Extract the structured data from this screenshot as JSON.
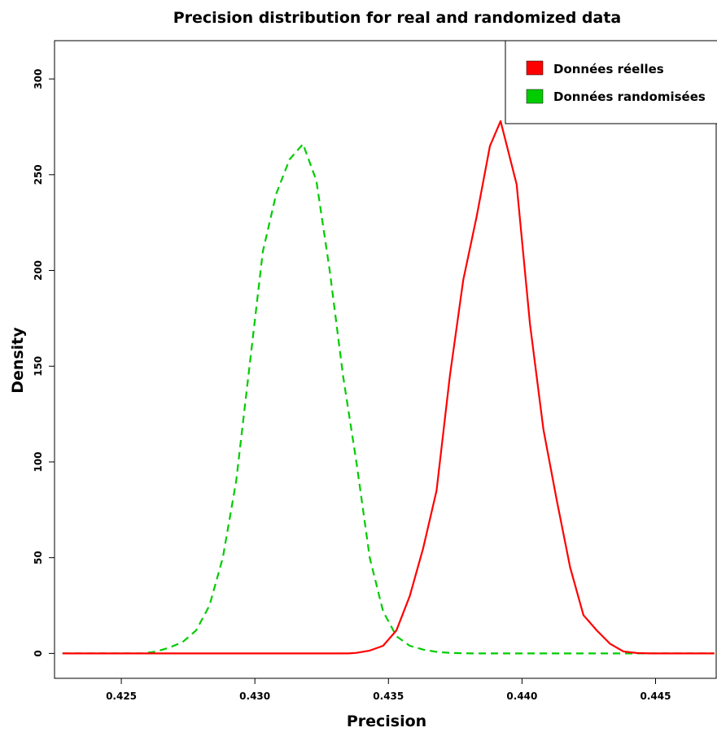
{
  "chart_data": {
    "type": "line",
    "title": "Precision distribution for real and randomized data",
    "xlabel": "Precision",
    "ylabel": "Density",
    "xlim": [
      0.4225,
      0.4473
    ],
    "ylim": [
      -13,
      320
    ],
    "xticks": [
      0.425,
      0.43,
      0.435,
      0.44,
      0.445
    ],
    "xtick_labels": [
      "0.425",
      "0.430",
      "0.435",
      "0.440",
      "0.445"
    ],
    "yticks": [
      0,
      50,
      100,
      150,
      200,
      250,
      300
    ],
    "ytick_labels": [
      "0",
      "50",
      "100",
      "150",
      "200",
      "250",
      "300"
    ],
    "grid": false,
    "legend_position": "top-right",
    "series": [
      {
        "name": "Données réelles",
        "color": "#ff0000",
        "style": "solid",
        "x": [
          0.4228,
          0.4335,
          0.4338,
          0.4343,
          0.4348,
          0.4353,
          0.4358,
          0.4363,
          0.4368,
          0.4373,
          0.4378,
          0.4383,
          0.4388,
          0.4392,
          0.4398,
          0.4403,
          0.4408,
          0.4413,
          0.4418,
          0.4423,
          0.4428,
          0.4433,
          0.4438,
          0.4443,
          0.4448,
          0.4472
        ],
        "y": [
          0,
          0,
          0.3,
          1.5,
          4,
          12,
          30,
          55,
          85,
          145,
          195,
          228,
          265,
          278,
          245,
          172,
          117,
          80,
          45,
          20,
          12,
          5,
          1,
          0.2,
          0,
          0
        ]
      },
      {
        "name": "Données randomisées",
        "color": "#00cc00",
        "style": "dashed",
        "x": [
          0.4228,
          0.4258,
          0.4263,
          0.4268,
          0.4273,
          0.4278,
          0.4283,
          0.4288,
          0.4293,
          0.4298,
          0.4303,
          0.4308,
          0.4313,
          0.4318,
          0.4323,
          0.4328,
          0.4333,
          0.4338,
          0.4343,
          0.4348,
          0.4353,
          0.4358,
          0.4363,
          0.4368,
          0.4373,
          0.4378,
          0.4383,
          0.4472
        ],
        "y": [
          0,
          0,
          1,
          3,
          6,
          12,
          25,
          50,
          90,
          150,
          210,
          240,
          258,
          266,
          247,
          200,
          145,
          100,
          50,
          22,
          9,
          4,
          2,
          0.8,
          0.3,
          0.1,
          0,
          0
        ]
      }
    ]
  }
}
